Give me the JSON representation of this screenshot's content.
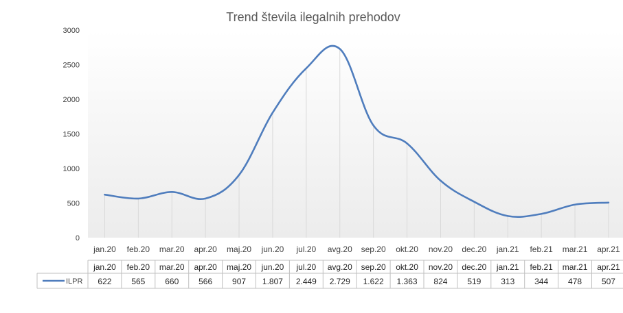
{
  "chart_data": {
    "type": "line",
    "title": "Trend števila ilegalnih prehodov",
    "categories": [
      "jan.20",
      "feb.20",
      "mar.20",
      "apr.20",
      "maj.20",
      "jun.20",
      "jul.20",
      "avg.20",
      "sep.20",
      "okt.20",
      "nov.20",
      "dec.20",
      "jan.21",
      "feb.21",
      "mar.21",
      "apr.21"
    ],
    "series": [
      {
        "name": "ILPR",
        "values": [
          622,
          565,
          660,
          566,
          907,
          1807,
          2449,
          2729,
          1622,
          1363,
          824,
          519,
          313,
          344,
          478,
          507
        ],
        "labels": [
          "622",
          "565",
          "660",
          "566",
          "907",
          "1.807",
          "2.449",
          "2.729",
          "1.622",
          "1.363",
          "824",
          "519",
          "313",
          "344",
          "478",
          "507"
        ],
        "color": "#4f7dbd"
      }
    ],
    "ylim": [
      0,
      3000
    ],
    "yticks": [
      "0",
      "500",
      "1000",
      "1500",
      "2000",
      "2500",
      "3000"
    ],
    "grid": "vertical",
    "legend": "data-table",
    "data_table": true,
    "smooth": true
  }
}
